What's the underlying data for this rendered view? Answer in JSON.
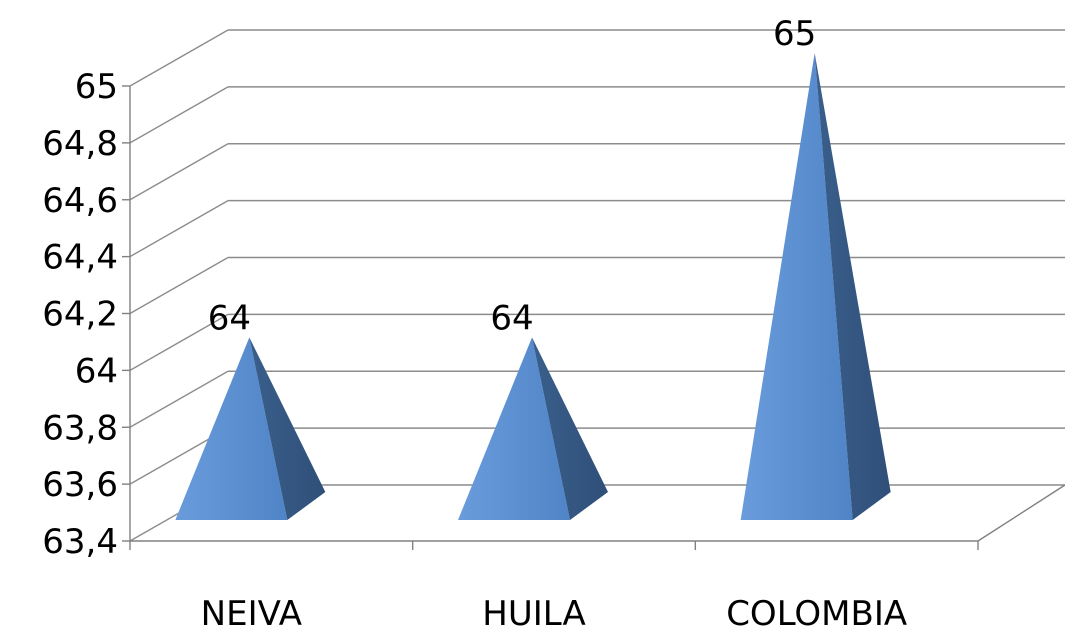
{
  "chart_data": {
    "type": "bar",
    "style": "3d-pyramid",
    "categories": [
      "NEIVA",
      "HUILA",
      "COLOMBIA"
    ],
    "values": [
      64,
      64,
      65
    ],
    "data_labels": [
      "64",
      "64",
      "65"
    ],
    "ylim": [
      63.4,
      65
    ],
    "yticks": [
      "63,4",
      "63,6",
      "63,8",
      "64",
      "64,2",
      "64,4",
      "64,6",
      "64,8",
      "65"
    ],
    "grid": true,
    "title": "",
    "xlabel": "",
    "ylabel": "",
    "colors": {
      "front": "#5b8fd0",
      "front_light": "#6a9cdc",
      "side": "#3a5f8c",
      "side_dark": "#2f4f78",
      "grid": "#8c8c8c",
      "axis": "#808080"
    }
  }
}
